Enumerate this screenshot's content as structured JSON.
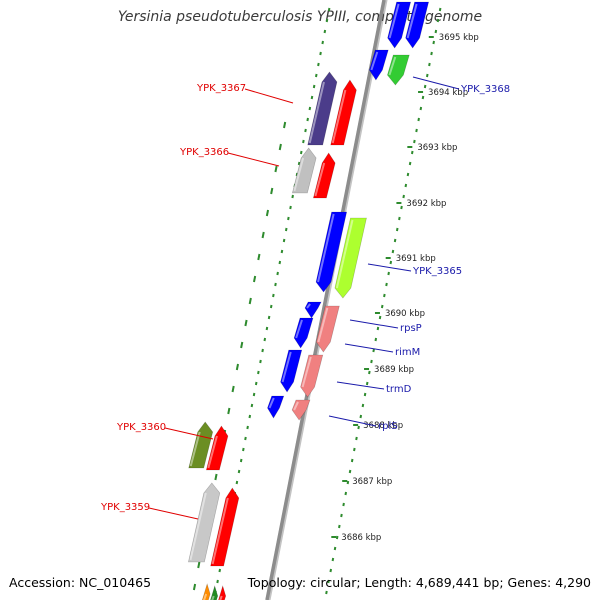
{
  "title": "Yersinia pseudotuberculosis YPIII, complete genome",
  "footer": {
    "accession": "Accession: NC_010465",
    "summary": "Topology: circular; Length: 4,689,441 bp; Genes: 4,290"
  },
  "colors": {
    "spine": "#8c8c8c",
    "tick_dots": "#2e8b2e",
    "forward_label": "#e00000",
    "reverse_label": "#1a1aaa",
    "scale_text": "#222222"
  },
  "scale_labels": [
    "3695 kbp",
    "3694 kbp",
    "3693 kbp",
    "3692 kbp",
    "3691 kbp",
    "3690 kbp",
    "3689 kbp",
    "3688 kbp",
    "3687 kbp",
    "3686 kbp"
  ],
  "forward_genes": [
    {
      "label": "YPK_3367",
      "color": "#4b3c8a"
    },
    {
      "label": "YPK_3366",
      "color": "#c0c0c0"
    },
    {
      "label": "YPK_3360",
      "color": "#6b8e23"
    },
    {
      "label": "YPK_3359",
      "color": "#c8c8c8"
    },
    {
      "label": "",
      "color": "#ff8c00"
    }
  ],
  "reverse_genes": [
    {
      "label": "",
      "color": "#0000ff"
    },
    {
      "label": "YPK_3368",
      "color": "#33cc33"
    },
    {
      "label": "YPK_3365",
      "color": "#adff2f"
    },
    {
      "label": "rpsP",
      "color": "#f08080"
    },
    {
      "label": "rimM",
      "color": "#f08080"
    },
    {
      "label": "trmD",
      "color": "#f08080"
    },
    {
      "label": "rplS",
      "color": "#f08080"
    }
  ]
}
